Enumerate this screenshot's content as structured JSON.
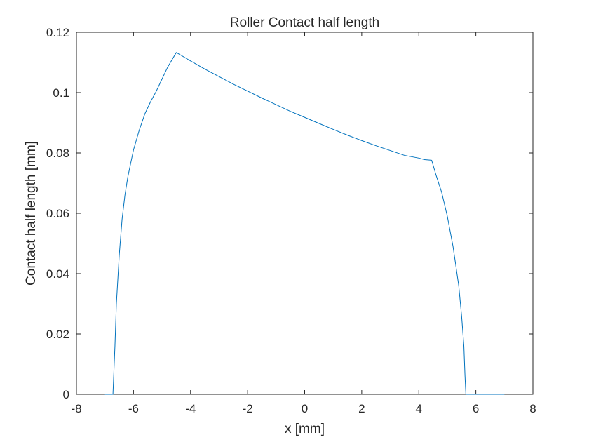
{
  "chart_data": {
    "type": "line",
    "title": "Roller Contact half length",
    "xlabel": "x [mm]",
    "ylabel": "Contact half length [mm]",
    "xlim": [
      -8,
      8
    ],
    "ylim": [
      0,
      0.12
    ],
    "xticks": [
      -8,
      -6,
      -4,
      -2,
      0,
      2,
      4,
      6,
      8
    ],
    "yticks": [
      0,
      0.02,
      0.04,
      0.06,
      0.08,
      0.1,
      0.12
    ],
    "xtick_labels": [
      "-8",
      "-6",
      "-4",
      "-2",
      "0",
      "2",
      "4",
      "6",
      "8"
    ],
    "ytick_labels": [
      "0",
      "0.02",
      "0.04",
      "0.06",
      "0.08",
      "0.1",
      "0.12"
    ],
    "grid": false,
    "series": [
      {
        "color": "#0072bd",
        "x": [
          -7.0,
          -6.72,
          -6.65,
          -6.6,
          -6.5,
          -6.4,
          -6.3,
          -6.2,
          -6.0,
          -5.8,
          -5.6,
          -5.4,
          -5.2,
          -5.0,
          -4.8,
          -4.5,
          -4.0,
          -3.5,
          -3.0,
          -2.5,
          -2.0,
          -1.5,
          -1.0,
          -0.5,
          0.0,
          0.5,
          1.0,
          1.5,
          2.0,
          2.5,
          3.0,
          3.5,
          4.0,
          4.2,
          4.45,
          4.6,
          4.8,
          5.0,
          5.2,
          5.4,
          5.5,
          5.58,
          5.62,
          5.65,
          6.0,
          7.0
        ],
        "y": [
          0.0,
          0.0,
          0.016,
          0.03,
          0.046,
          0.058,
          0.066,
          0.072,
          0.081,
          0.0875,
          0.093,
          0.097,
          0.1005,
          0.1045,
          0.1085,
          0.1133,
          0.1105,
          0.1078,
          0.1053,
          0.1028,
          0.1005,
          0.0982,
          0.096,
          0.0938,
          0.0918,
          0.0898,
          0.0878,
          0.0859,
          0.0841,
          0.0824,
          0.0808,
          0.0792,
          0.0783,
          0.0778,
          0.0776,
          0.0728,
          0.067,
          0.059,
          0.049,
          0.036,
          0.026,
          0.016,
          0.006,
          0.0,
          0.0,
          0.0
        ]
      }
    ]
  }
}
